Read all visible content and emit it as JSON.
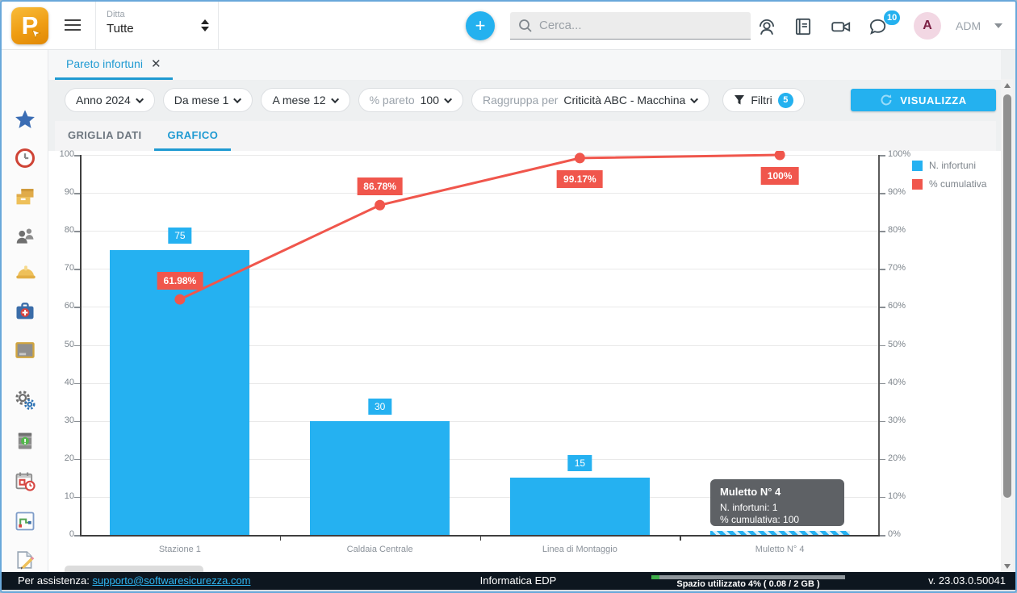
{
  "topbar": {
    "logo_letter": "P",
    "company_label": "Ditta",
    "company_value": "Tutte",
    "add_button": "+",
    "search_placeholder": "Cerca...",
    "chat_badge": "10",
    "avatar_initial": "A",
    "user_role": "ADM"
  },
  "sidebar": {
    "icons": [
      "favorites-star",
      "time-clock",
      "archive-boxes",
      "people",
      "safety-helmet",
      "first-aid-kit",
      "monitor",
      "settings-gears",
      "chemical-drum",
      "calendar-schedule",
      "process-flow",
      "edit-document"
    ]
  },
  "workspace": {
    "open_tab": "Pareto infortuni"
  },
  "filters": {
    "anno": "Anno 2024",
    "da_mese": "Da mese 1",
    "a_mese": "A mese 12",
    "pareto_label": "% pareto",
    "pareto_value": "100",
    "raggruppa_label": "Raggruppa per",
    "raggruppa_value": "Criticità ABC - Macchina",
    "filtri_label": "Filtri",
    "filtri_count": "5",
    "visualizza_label": "VISUALIZZA"
  },
  "view_tabs": {
    "grid": "GRIGLIA DATI",
    "chart": "GRAFICO"
  },
  "chart_data": {
    "type": "bar",
    "subtype": "pareto (bar + cumulative line)",
    "title": "",
    "categories": [
      "Stazione 1",
      "Caldaia Centrale",
      "Linea di Montaggio",
      "Muletto N° 4"
    ],
    "series": [
      {
        "name": "N. infortuni",
        "type": "bar",
        "color": "#25b1f1",
        "values": [
          75,
          30,
          15,
          1
        ]
      },
      {
        "name": "% cumulativa",
        "type": "line",
        "color": "#f0564c",
        "values": [
          61.98,
          86.78,
          99.17,
          100
        ]
      }
    ],
    "bar_value_labels": [
      "75",
      "30",
      "15"
    ],
    "line_point_labels": [
      "61.98%",
      "86.78%",
      "99.17%",
      "100%"
    ],
    "left_axis": {
      "min": 0,
      "max": 100,
      "step": 10
    },
    "right_axis": {
      "min": 0,
      "max": 100,
      "step": 10,
      "suffix": "%"
    },
    "legend": [
      {
        "label": "N. infortuni",
        "color": "#25b1f1"
      },
      {
        "label": "% cumulativa",
        "color": "#f0564c"
      }
    ],
    "legend_position": "top-right",
    "grid": true,
    "highlighted_category_index": 3
  },
  "tooltip": {
    "title": "Muletto N° 4",
    "line1": "N. infortuni: 1",
    "line2": "% cumulativa: 100"
  },
  "footer": {
    "assist_label": "Per assistenza:",
    "assist_link": "supporto@softwaresicurezza.com",
    "center_text": "Informatica EDP",
    "storage_label": "Spazio utilizzato 4% ( 0.08 / 2 GB )",
    "storage_percent": 4,
    "version": "v. 23.03.0.50041"
  }
}
